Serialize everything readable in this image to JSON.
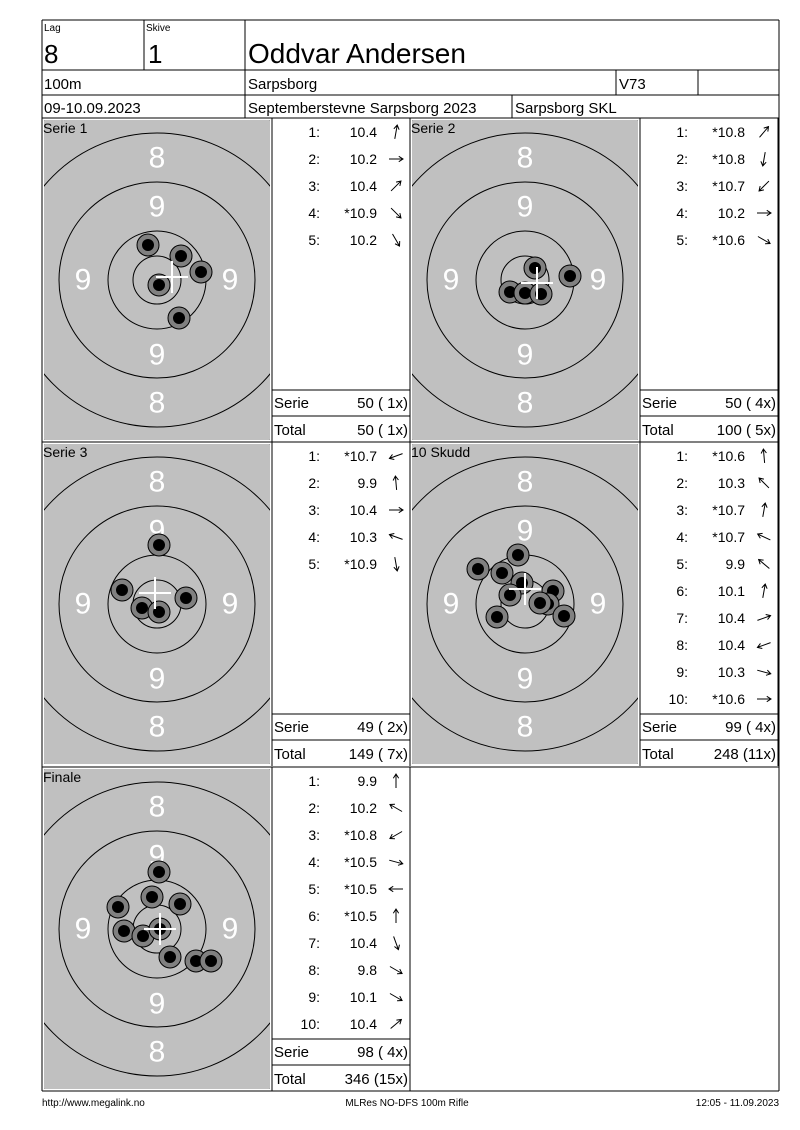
{
  "header": {
    "lag_label": "Lag",
    "lag": "8",
    "skive_label": "Skive",
    "skive": "1",
    "name": "Oddvar Andersen",
    "distance": "100m",
    "place": "Sarpsborg",
    "class": "V73",
    "date": "09-10.09.2023",
    "event": "Septemberstevne Sarpsborg 2023",
    "club": "Sarpsborg SKL"
  },
  "target_labels": {
    "outer": "8",
    "inner": "9"
  },
  "panels": [
    {
      "title": "Serie 1",
      "shots": [
        {
          "n": "1:",
          "score": "10.4"
        },
        {
          "n": "2:",
          "score": "10.2"
        },
        {
          "n": "3:",
          "score": "10.4"
        },
        {
          "n": "4:",
          "score": "*10.9"
        },
        {
          "n": "5:",
          "score": "10.2"
        }
      ],
      "serie_label": "Serie",
      "serie": "50 ( 1x)",
      "total_label": "Total",
      "total": "50 ( 1x)"
    },
    {
      "title": "Serie 2",
      "shots": [
        {
          "n": "1:",
          "score": "*10.8"
        },
        {
          "n": "2:",
          "score": "*10.8"
        },
        {
          "n": "3:",
          "score": "*10.7"
        },
        {
          "n": "4:",
          "score": "10.2"
        },
        {
          "n": "5:",
          "score": "*10.6"
        }
      ],
      "serie_label": "Serie",
      "serie": "50 ( 4x)",
      "total_label": "Total",
      "total": "100 ( 5x)"
    },
    {
      "title": "Serie 3",
      "shots": [
        {
          "n": "1:",
          "score": "*10.7"
        },
        {
          "n": "2:",
          "score": "9.9"
        },
        {
          "n": "3:",
          "score": "10.4"
        },
        {
          "n": "4:",
          "score": "10.3"
        },
        {
          "n": "5:",
          "score": "*10.9"
        }
      ],
      "serie_label": "Serie",
      "serie": "49 ( 2x)",
      "total_label": "Total",
      "total": "149 ( 7x)"
    },
    {
      "title": "10 Skudd",
      "shots": [
        {
          "n": "1:",
          "score": "*10.6"
        },
        {
          "n": "2:",
          "score": "10.3"
        },
        {
          "n": "3:",
          "score": "*10.7"
        },
        {
          "n": "4:",
          "score": "*10.7"
        },
        {
          "n": "5:",
          "score": "9.9"
        },
        {
          "n": "6:",
          "score": "10.1"
        },
        {
          "n": "7:",
          "score": "10.4"
        },
        {
          "n": "8:",
          "score": "10.4"
        },
        {
          "n": "9:",
          "score": "10.3"
        },
        {
          "n": "10:",
          "score": "*10.6"
        }
      ],
      "serie_label": "Serie",
      "serie": "99 ( 4x)",
      "total_label": "Total",
      "total": "248 (11x)"
    },
    {
      "title": "Finale",
      "shots": [
        {
          "n": "1:",
          "score": "9.9"
        },
        {
          "n": "2:",
          "score": "10.2"
        },
        {
          "n": "3:",
          "score": "*10.8"
        },
        {
          "n": "4:",
          "score": "*10.5"
        },
        {
          "n": "5:",
          "score": "*10.5"
        },
        {
          "n": "6:",
          "score": "*10.5"
        },
        {
          "n": "7:",
          "score": "10.4"
        },
        {
          "n": "8:",
          "score": "9.8"
        },
        {
          "n": "9:",
          "score": "10.1"
        },
        {
          "n": "10:",
          "score": "10.4"
        }
      ],
      "serie_label": "Serie",
      "serie": "98 ( 4x)",
      "total_label": "Total",
      "total": "346 (15x)"
    }
  ],
  "footer": {
    "left": "http://www.megalink.no",
    "center": "MLRes NO-DFS 100m Rifle",
    "right": "12:05 - 11.09.2023"
  }
}
